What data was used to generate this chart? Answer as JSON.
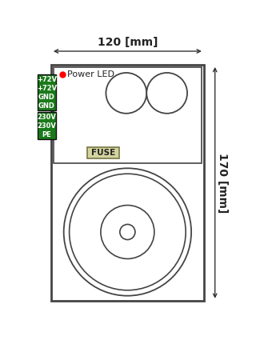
{
  "bg_color": "#ffffff",
  "box_face": "#ffffff",
  "panel_face": "#ffffff",
  "circle_face": "#ffffff",
  "border_color": "#444444",
  "dim_color": "#222222",
  "green_dark": "#1a7a1a",
  "fuse_border": "#888855",
  "fuse_bg": "#d4d4a0",
  "width_label": "120 [mm]",
  "height_label": "170 [mm]",
  "connector_labels_top": [
    "+72V",
    "+72V",
    "GND",
    "GND"
  ],
  "connector_labels_bot": [
    "230V",
    "230V",
    "PE"
  ],
  "power_led_text": "Power LED",
  "fuse_text": "FUSE",
  "arrow_color": "#333333"
}
